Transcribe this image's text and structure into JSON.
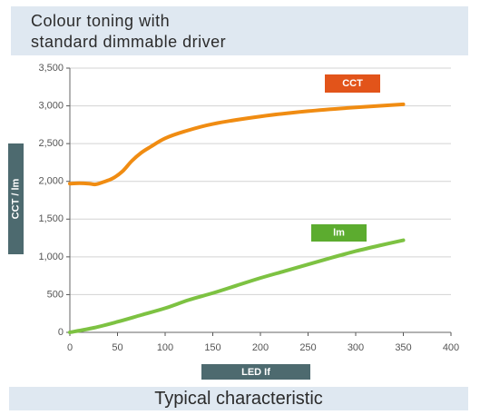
{
  "title": {
    "line1": "Colour toning with",
    "line2": "standard dimmable driver"
  },
  "footer": "Typical characteristic",
  "colors": {
    "cct": "#f08c12",
    "cct_label": "#e2541a",
    "lm": "#7dc242",
    "lm_label": "#5cac2f",
    "axis_label_bg": "#4d6a6f",
    "grid": "#d3d3d3",
    "panel_bg": "#dfe8f1"
  },
  "chart_data": {
    "type": "line",
    "xlabel": "LED If",
    "ylabel": "CCT / lm",
    "xlim": [
      0,
      400
    ],
    "ylim": [
      0,
      3500
    ],
    "x_ticks": [
      "0",
      "50",
      "100",
      "150",
      "200",
      "250",
      "300",
      "350",
      "400"
    ],
    "y_ticks": [
      "0",
      "500",
      "1,000",
      "1,500",
      "2,000",
      "2,500",
      "3,000",
      "3,500"
    ],
    "x_tick_values": [
      0,
      50,
      100,
      150,
      200,
      250,
      300,
      350,
      400
    ],
    "y_tick_values": [
      0,
      500,
      1000,
      1500,
      2000,
      2500,
      3000,
      3500
    ],
    "grid": "horizontal",
    "series": [
      {
        "name": "CCT",
        "x": [
          0,
          10,
          20,
          27,
          35,
          45,
          55,
          65,
          75,
          85,
          100,
          120,
          150,
          200,
          250,
          300,
          350
        ],
        "y": [
          1970,
          1975,
          1970,
          1960,
          1990,
          2040,
          2130,
          2270,
          2380,
          2460,
          2570,
          2660,
          2760,
          2860,
          2930,
          2980,
          3020
        ]
      },
      {
        "name": "lm",
        "x": [
          0,
          25,
          50,
          75,
          100,
          125,
          150,
          175,
          200,
          225,
          250,
          275,
          300,
          325,
          350
        ],
        "y": [
          0,
          60,
          140,
          230,
          320,
          430,
          520,
          620,
          720,
          810,
          900,
          990,
          1075,
          1150,
          1220
        ]
      }
    ]
  }
}
